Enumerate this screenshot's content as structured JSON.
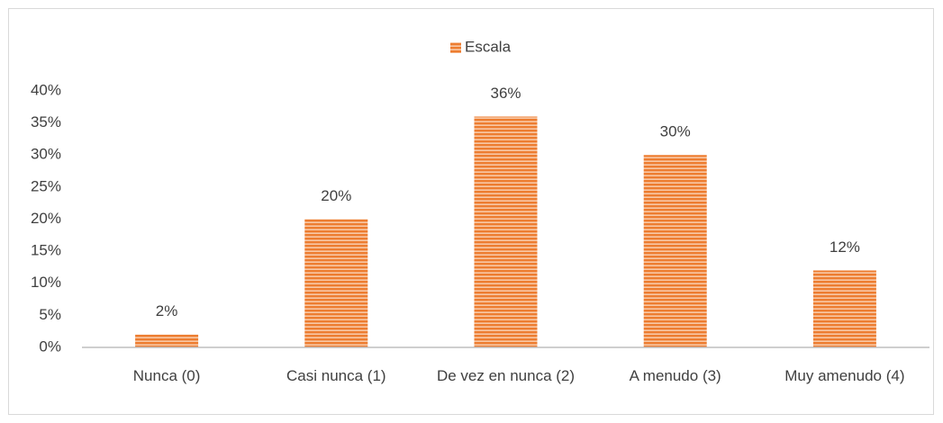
{
  "chart_data": {
    "type": "bar",
    "legend": "Escala",
    "categories": [
      "Nunca (0)",
      "Casi nunca (1)",
      "De vez en nunca (2)",
      "A menudo (3)",
      "Muy amenudo (4)"
    ],
    "values": [
      2,
      20,
      36,
      30,
      12
    ],
    "value_labels": [
      "2%",
      "20%",
      "36%",
      "30%",
      "12%"
    ],
    "color": "#ED7D31",
    "ylim": [
      0,
      40
    ],
    "yticks": [
      {
        "value": 0,
        "label": "0%"
      },
      {
        "value": 5,
        "label": "5%"
      },
      {
        "value": 10,
        "label": "10%"
      },
      {
        "value": 15,
        "label": "15%"
      },
      {
        "value": 20,
        "label": "20%"
      },
      {
        "value": 25,
        "label": "25%"
      },
      {
        "value": 30,
        "label": "30%"
      },
      {
        "value": 35,
        "label": "35%"
      },
      {
        "value": 40,
        "label": "40%"
      }
    ],
    "grid": false
  }
}
